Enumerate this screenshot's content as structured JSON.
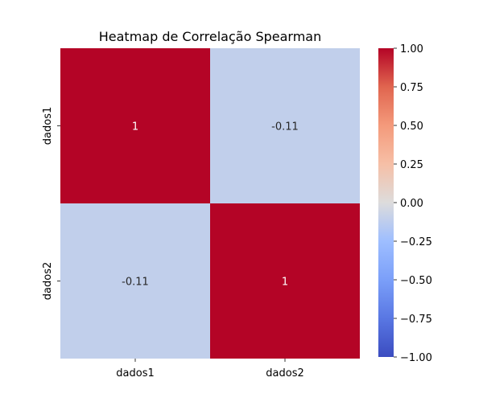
{
  "chart_data": {
    "type": "heatmap",
    "title": "Heatmap de Correlação Spearman",
    "x_categories": [
      "dados1",
      "dados2"
    ],
    "y_categories": [
      "dados1",
      "dados2"
    ],
    "values": [
      [
        1,
        -0.11
      ],
      [
        -0.11,
        1
      ]
    ],
    "annotations": [
      [
        "1",
        "-0.11"
      ],
      [
        "-0.11",
        "1"
      ]
    ],
    "colorbar": {
      "colormap": "coolwarm",
      "vmin": -1.0,
      "vmax": 1.0,
      "ticks": [
        1.0,
        0.75,
        0.5,
        0.25,
        0.0,
        -0.25,
        -0.5,
        -0.75,
        -1.0
      ],
      "tick_labels": [
        "1.00",
        "0.75",
        "0.50",
        "0.25",
        "0.00",
        "−0.25",
        "−0.50",
        "−0.75",
        "−1.00"
      ]
    }
  }
}
